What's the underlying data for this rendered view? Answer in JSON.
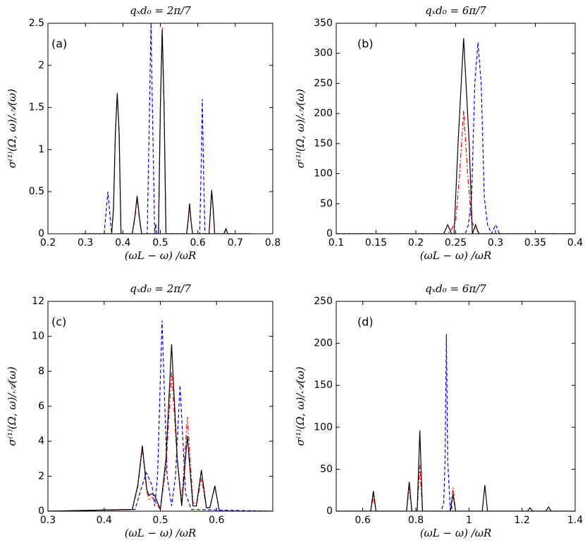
{
  "chart_data": [
    {
      "type": "line",
      "title": "qₓd₀ = 2π/7",
      "panel_label": "(a)",
      "x_label": "(ωL − ω) /ωR",
      "y_label": "σ⁽¹⁾(Ω, ω)/𝒜(ω)",
      "xlim": [
        0.2,
        0.8
      ],
      "xticks": [
        0.2,
        0.3,
        0.4,
        0.5,
        0.6,
        0.7,
        0.8
      ],
      "ylim": [
        0,
        2.5
      ],
      "yticks": [
        0,
        0.5,
        1,
        1.5,
        2,
        2.5
      ],
      "series": [
        {
          "color": "#0000ff",
          "dash": "dashed",
          "x": [
            0.29,
            0.35,
            0.355,
            0.36,
            0.365,
            0.37,
            0.465,
            0.47,
            0.475,
            0.48,
            0.485,
            0.488,
            0.49,
            0.495,
            0.605,
            0.609,
            0.612,
            0.615,
            0.619,
            0.74
          ],
          "values": [
            0,
            0,
            0.25,
            0.5,
            0.25,
            0,
            0,
            1.2,
            2.5,
            1.2,
            0,
            0.12,
            0,
            0,
            0,
            0.8,
            1.6,
            0.8,
            0,
            0
          ]
        },
        {
          "color": "#ff0000",
          "dash": "dashdot",
          "x": [
            0.29,
            0.37,
            0.375,
            0.38,
            0.385,
            0.39,
            0.395,
            0.425,
            0.432,
            0.438,
            0.444,
            0.45,
            0.495,
            0.5,
            0.505,
            0.51,
            0.515,
            0.57,
            0.574,
            0.578,
            0.582,
            0.586,
            0.63,
            0.634,
            0.637,
            0.641,
            0.645,
            0.67,
            0.675,
            0.68,
            0.74
          ],
          "values": [
            0,
            0,
            0.3,
            1.2,
            1.65,
            1.2,
            0,
            0,
            0.18,
            0.42,
            0.18,
            0,
            0,
            1.5,
            2.45,
            1.5,
            0,
            0,
            0.13,
            0.32,
            0.13,
            0,
            0,
            0.3,
            0.5,
            0.3,
            0,
            0,
            0.05,
            0,
            0
          ]
        },
        {
          "color": "#000000",
          "dash": "solid",
          "x": [
            0.29,
            0.37,
            0.375,
            0.38,
            0.385,
            0.39,
            0.395,
            0.425,
            0.432,
            0.438,
            0.444,
            0.45,
            0.495,
            0.5,
            0.505,
            0.51,
            0.515,
            0.57,
            0.574,
            0.578,
            0.582,
            0.586,
            0.63,
            0.634,
            0.637,
            0.641,
            0.645,
            0.67,
            0.675,
            0.68,
            0.74
          ],
          "values": [
            0,
            0,
            0.3,
            1.2,
            1.67,
            1.2,
            0,
            0,
            0.2,
            0.45,
            0.2,
            0,
            0,
            1.5,
            2.42,
            1.5,
            0,
            0,
            0.15,
            0.36,
            0.15,
            0,
            0,
            0.3,
            0.52,
            0.3,
            0,
            0,
            0.06,
            0,
            0
          ]
        }
      ]
    },
    {
      "type": "line",
      "title": "qₓd₀ = 6π/7",
      "panel_label": "(b)",
      "x_label": "(ωL − ω) /ωR",
      "y_label": "σ⁽¹⁾(Ω, ω)/𝒜(ω)",
      "xlim": [
        0.1,
        0.4
      ],
      "xticks": [
        0.1,
        0.15,
        0.2,
        0.25,
        0.3,
        0.35,
        0.4
      ],
      "ylim": [
        0,
        350
      ],
      "yticks": [
        0,
        50,
        100,
        150,
        200,
        250,
        300,
        350
      ],
      "series": [
        {
          "color": "#0000ff",
          "dash": "dashed",
          "x": [
            0.1,
            0.262,
            0.266,
            0.27,
            0.274,
            0.278,
            0.282,
            0.286,
            0.29,
            0.295,
            0.3,
            0.305,
            0.4
          ],
          "values": [
            0,
            0,
            15,
            60,
            250,
            318,
            250,
            60,
            15,
            0,
            15,
            0,
            0
          ]
        },
        {
          "color": "#ff0000",
          "dash": "dashdot",
          "x": [
            0.1,
            0.24,
            0.245,
            0.25,
            0.255,
            0.26,
            0.265,
            0.27,
            0.275,
            0.28,
            0.4
          ],
          "values": [
            0,
            0,
            8,
            20,
            100,
            205,
            100,
            20,
            8,
            0,
            0
          ]
        },
        {
          "color": "#000000",
          "dash": "solid",
          "x": [
            0.1,
            0.235,
            0.24,
            0.245,
            0.248,
            0.253,
            0.26,
            0.267,
            0.271,
            0.275,
            0.279,
            0.4
          ],
          "values": [
            0,
            0,
            15,
            0,
            0,
            150,
            325,
            150,
            0,
            15,
            0,
            0
          ]
        }
      ]
    },
    {
      "type": "line",
      "title": "qₓd₀ = 2π/7",
      "panel_label": "(c)",
      "x_label": "(ωL − ω) /ωR",
      "y_label": "σ⁽¹⁾(Ω, ω)/𝒜(ω)",
      "xlim": [
        0.3,
        0.7
      ],
      "xticks": [
        0.3,
        0.4,
        0.5,
        0.6
      ],
      "ylim": [
        0,
        12
      ],
      "yticks": [
        0,
        2,
        4,
        6,
        8,
        10,
        12
      ],
      "series": [
        {
          "color": "#0000ff",
          "dash": "dashed",
          "x": [
            0.3,
            0.455,
            0.465,
            0.475,
            0.485,
            0.49,
            0.495,
            0.503,
            0.512,
            0.52,
            0.527,
            0.535,
            0.545,
            0.555,
            0.7
          ],
          "values": [
            0,
            0.1,
            1.2,
            2.2,
            1.5,
            0.3,
            2,
            10.9,
            2,
            0.3,
            2,
            7.2,
            1,
            0.1,
            0
          ]
        },
        {
          "color": "#ff0000",
          "dash": "dashdot",
          "x": [
            0.3,
            0.45,
            0.46,
            0.468,
            0.476,
            0.48,
            0.485,
            0.49,
            0.5,
            0.51,
            0.52,
            0.53,
            0.538,
            0.548,
            0.558,
            0.564,
            0.573,
            0.582,
            0.588,
            0.597,
            0.605,
            0.7
          ],
          "values": [
            0,
            0.1,
            1.4,
            3.6,
            1.1,
            0.7,
            0.8,
            0.6,
            0.1,
            2.5,
            8,
            3,
            0.5,
            5.4,
            0.5,
            0.3,
            1.9,
            0.2,
            0.2,
            1.4,
            0,
            0
          ]
        },
        {
          "color": "#000000",
          "dash": "solid",
          "x": [
            0.3,
            0.45,
            0.46,
            0.468,
            0.476,
            0.48,
            0.485,
            0.49,
            0.5,
            0.51,
            0.52,
            0.53,
            0.538,
            0.548,
            0.558,
            0.564,
            0.573,
            0.582,
            0.588,
            0.597,
            0.605,
            0.7
          ],
          "values": [
            0,
            0.1,
            1.5,
            3.75,
            1.2,
            0.9,
            1,
            0.9,
            0.1,
            3,
            9.55,
            3,
            0.3,
            4.3,
            0.3,
            0.3,
            2.35,
            0.2,
            0.2,
            1.45,
            0,
            0
          ]
        }
      ]
    },
    {
      "type": "line",
      "title": "qₓd₀ = 6π/7",
      "panel_label": "(d)",
      "x_label": "(ωL − ω) /ωR",
      "y_label": "σ⁽¹⁾(Ω, ω)/𝒜(ω)",
      "xlim": [
        0.5,
        1.4
      ],
      "xticks": [
        0.6,
        0.8,
        1,
        1.2,
        1.4
      ],
      "ylim": [
        0,
        250
      ],
      "yticks": [
        0,
        50,
        100,
        150,
        200,
        250
      ],
      "series": [
        {
          "color": "#0000ff",
          "dash": "dashed",
          "x": [
            0.5,
            0.895,
            0.905,
            0.91,
            0.915,
            0.92,
            0.93,
            0.935,
            0.94,
            1.4
          ],
          "values": [
            0,
            0,
            10,
            60,
            211,
            60,
            0,
            5,
            0,
            0
          ]
        },
        {
          "color": "#ff0000",
          "dash": "dashdot",
          "x": [
            0.5,
            0.63,
            0.64,
            0.65,
            0.765,
            0.775,
            0.785,
            0.805,
            0.815,
            0.825,
            0.93,
            0.94,
            0.95,
            1.4
          ],
          "values": [
            0,
            0,
            18,
            0,
            0,
            28,
            0,
            0,
            55,
            0,
            0,
            28,
            0,
            0
          ]
        },
        {
          "color": "#000000",
          "dash": "solid",
          "x": [
            0.5,
            0.63,
            0.64,
            0.65,
            0.765,
            0.775,
            0.785,
            0.805,
            0.815,
            0.825,
            0.93,
            0.94,
            0.95,
            1.05,
            1.06,
            1.07,
            1.22,
            1.23,
            1.24,
            1.29,
            1.3,
            1.31,
            1.4
          ],
          "values": [
            0,
            0,
            24,
            0,
            0,
            35,
            0,
            0,
            96,
            0,
            0,
            20,
            0,
            0,
            31,
            0,
            0,
            4,
            0,
            0,
            5,
            0,
            0
          ]
        }
      ]
    }
  ]
}
